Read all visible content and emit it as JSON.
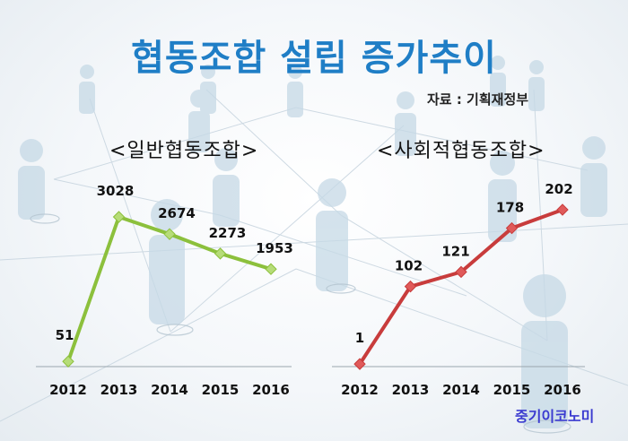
{
  "title": "협동조합 설립 증가추이",
  "source": "자료 : 기획재정부",
  "brand": "중기이코노미",
  "colors": {
    "title": "#1f7ec6",
    "general": "#8cc03c",
    "social": "#c83c3c",
    "marker_general": "#b6dc78",
    "marker_social": "#e05a5a"
  },
  "chart_data": [
    {
      "type": "line",
      "title": "<일반협동조합>",
      "categories": [
        "2012",
        "2013",
        "2014",
        "2015",
        "2016"
      ],
      "series": [
        {
          "values": [
            51,
            3028,
            2674,
            2273,
            1953
          ]
        }
      ],
      "data_labels": [
        "51",
        "3028",
        "2674",
        "2273",
        "1953"
      ],
      "ylim": [
        0,
        3300
      ],
      "grid": false,
      "legend": "none"
    },
    {
      "type": "line",
      "title": "<사회적협동조합>",
      "categories": [
        "2012",
        "2013",
        "2014",
        "2015",
        "2016"
      ],
      "series": [
        {
          "values": [
            1,
            102,
            121,
            178,
            202
          ]
        }
      ],
      "data_labels": [
        "1",
        "102",
        "121",
        "178",
        "202"
      ],
      "ylim": [
        0,
        220
      ],
      "grid": false,
      "legend": "none"
    }
  ]
}
